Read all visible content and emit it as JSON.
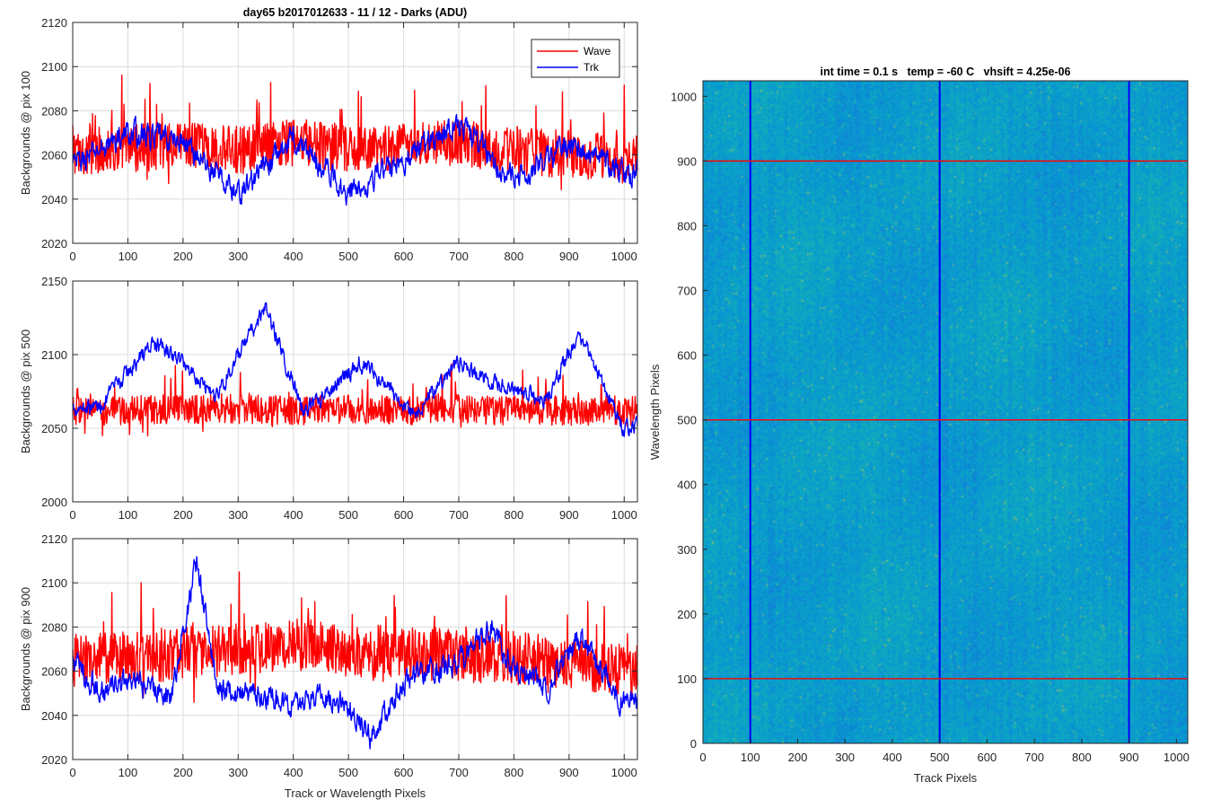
{
  "chart_data": [
    {
      "type": "line",
      "title": "day65 b2017012633 - 11 / 12 - Darks (ADU)",
      "xlabel": "",
      "ylabel": "Backgrounds @ pix 100",
      "xlim": [
        0,
        1024
      ],
      "ylim": [
        2020,
        2120
      ],
      "xticks": [
        0,
        100,
        200,
        300,
        400,
        500,
        600,
        700,
        800,
        900,
        1000
      ],
      "yticks": [
        2020,
        2040,
        2060,
        2080,
        2100,
        2120
      ],
      "grid": true,
      "legend_position": "top-right",
      "series": [
        {
          "name": "Wave",
          "color": "#ff0000",
          "mean": 2063,
          "noise": 11,
          "x": [
            0,
            100,
            200,
            300,
            400,
            500,
            600,
            700,
            800,
            900,
            1000
          ],
          "values": [
            2062,
            2063,
            2064,
            2062,
            2066,
            2062,
            2063,
            2066,
            2061,
            2061,
            2058
          ]
        },
        {
          "name": "Trk",
          "color": "#0000ff",
          "mean": 2057,
          "noise": 5,
          "x": [
            0,
            100,
            200,
            300,
            400,
            500,
            600,
            700,
            800,
            900,
            1000
          ],
          "values": [
            2055,
            2070,
            2066,
            2042,
            2068,
            2043,
            2058,
            2075,
            2048,
            2065,
            2052
          ]
        }
      ]
    },
    {
      "type": "line",
      "title": "",
      "xlabel": "",
      "ylabel": "Backgrounds @ pix 500",
      "xlim": [
        0,
        1024
      ],
      "ylim": [
        2000,
        2150
      ],
      "xticks": [
        0,
        100,
        200,
        300,
        400,
        500,
        600,
        700,
        800,
        900,
        1000
      ],
      "yticks": [
        2000,
        2050,
        2100,
        2150
      ],
      "grid": true,
      "series": [
        {
          "name": "Wave",
          "color": "#ff0000",
          "mean": 2062,
          "noise": 10,
          "x": [
            0,
            100,
            200,
            300,
            400,
            500,
            600,
            700,
            800,
            900,
            1000
          ],
          "values": [
            2062,
            2062,
            2063,
            2063,
            2062,
            2063,
            2062,
            2063,
            2062,
            2062,
            2062
          ]
        },
        {
          "name": "Trk",
          "color": "#0000ff",
          "mean": 2070,
          "noise": 5,
          "x": [
            0,
            50,
            145,
            200,
            260,
            350,
            420,
            520,
            620,
            700,
            760,
            860,
            920,
            1000
          ],
          "values": [
            2065,
            2065,
            2108,
            2095,
            2072,
            2132,
            2060,
            2095,
            2060,
            2095,
            2080,
            2070,
            2115,
            2050
          ]
        }
      ]
    },
    {
      "type": "line",
      "title": "",
      "xlabel": "Track or Wavelength Pixels",
      "ylabel": "Backgrounds @ pix 900",
      "xlim": [
        0,
        1024
      ],
      "ylim": [
        2020,
        2120
      ],
      "xticks": [
        0,
        100,
        200,
        300,
        400,
        500,
        600,
        700,
        800,
        900,
        1000
      ],
      "yticks": [
        2020,
        2040,
        2060,
        2080,
        2100,
        2120
      ],
      "grid": true,
      "series": [
        {
          "name": "Wave",
          "color": "#ff0000",
          "mean": 2068,
          "noise": 12,
          "x": [
            0,
            100,
            200,
            300,
            400,
            500,
            600,
            700,
            800,
            900,
            1000
          ],
          "values": [
            2065,
            2066,
            2068,
            2070,
            2072,
            2070,
            2068,
            2067,
            2066,
            2064,
            2060
          ]
        },
        {
          "name": "Trk",
          "color": "#0000ff",
          "mean": 2055,
          "noise": 5,
          "x": [
            0,
            50,
            100,
            180,
            225,
            260,
            300,
            350,
            400,
            450,
            500,
            540,
            600,
            660,
            700,
            760,
            800,
            860,
            920,
            1000
          ],
          "values": [
            2065,
            2050,
            2055,
            2050,
            2110,
            2055,
            2050,
            2048,
            2045,
            2050,
            2045,
            2030,
            2055,
            2060,
            2065,
            2080,
            2060,
            2052,
            2075,
            2045
          ]
        }
      ]
    },
    {
      "type": "heatmap",
      "title": "int time = 0.1 s   temp = -60 C   vhsift = 4.25e-06",
      "xlabel": "Track Pixels",
      "ylabel": "Wavelength Pixels",
      "xlim": [
        0,
        1024
      ],
      "ylim": [
        0,
        1024
      ],
      "xticks": [
        0,
        100,
        200,
        300,
        400,
        500,
        600,
        700,
        800,
        900,
        1000
      ],
      "yticks": [
        0,
        100,
        200,
        300,
        400,
        500,
        600,
        700,
        800,
        900,
        1000
      ],
      "colormap": "parula",
      "vertical_markers": {
        "x": [
          100,
          500,
          900
        ],
        "color": "#0000ff"
      },
      "horizontal_markers": {
        "y": [
          100,
          500,
          900
        ],
        "color": "#ff0000"
      }
    }
  ]
}
